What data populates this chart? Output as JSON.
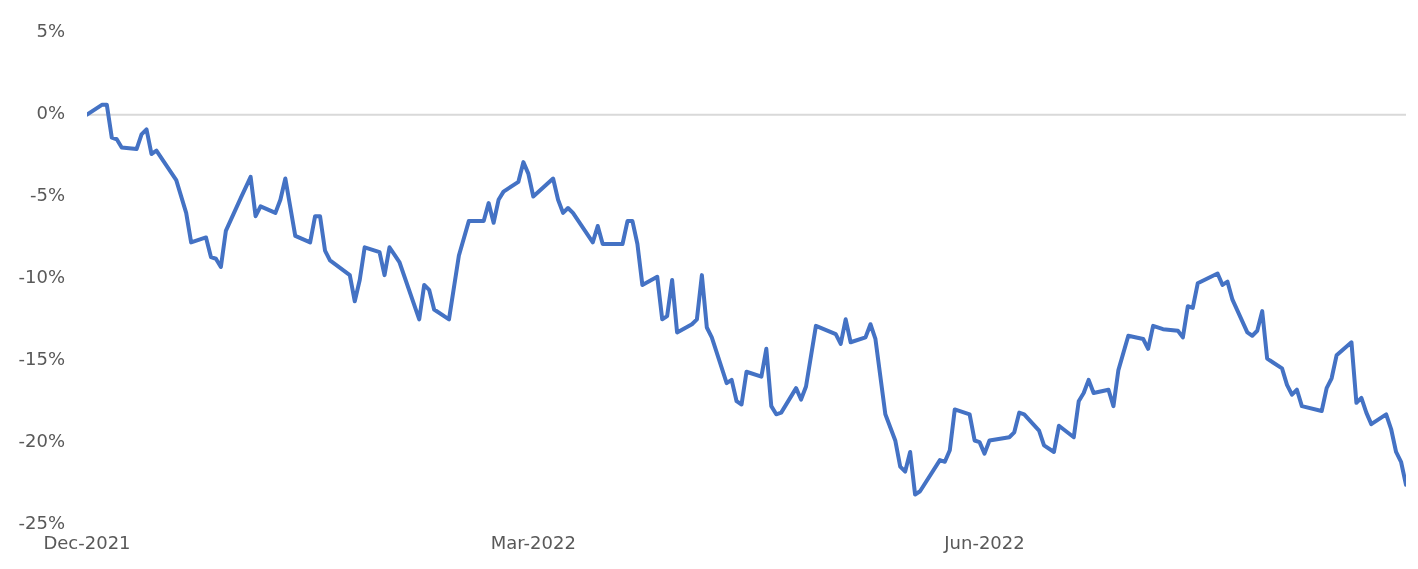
{
  "chart_data": {
    "type": "line",
    "x": [
      "2021-12-31",
      "2022-01-03",
      "2022-01-04",
      "2022-01-05",
      "2022-01-06",
      "2022-01-07",
      "2022-01-10",
      "2022-01-11",
      "2022-01-12",
      "2022-01-13",
      "2022-01-14",
      "2022-01-18",
      "2022-01-20",
      "2022-01-21",
      "2022-01-24",
      "2022-01-25",
      "2022-01-26",
      "2022-01-27",
      "2022-01-28",
      "2022-01-31",
      "2022-02-02",
      "2022-02-03",
      "2022-02-04",
      "2022-02-07",
      "2022-02-08",
      "2022-02-09",
      "2022-02-11",
      "2022-02-14",
      "2022-02-15",
      "2022-02-16",
      "2022-02-17",
      "2022-02-18",
      "2022-02-22",
      "2022-02-23",
      "2022-02-24",
      "2022-02-25",
      "2022-02-28",
      "2022-03-01",
      "2022-03-02",
      "2022-03-04",
      "2022-03-08",
      "2022-03-09",
      "2022-03-10",
      "2022-03-11",
      "2022-03-14",
      "2022-03-16",
      "2022-03-18",
      "2022-03-21",
      "2022-03-22",
      "2022-03-23",
      "2022-03-24",
      "2022-03-25",
      "2022-03-28",
      "2022-03-29",
      "2022-03-30",
      "2022-03-31",
      "2022-04-04",
      "2022-04-05",
      "2022-04-06",
      "2022-04-07",
      "2022-04-08",
      "2022-04-12",
      "2022-04-13",
      "2022-04-14",
      "2022-04-18",
      "2022-04-19",
      "2022-04-20",
      "2022-04-21",
      "2022-04-22",
      "2022-04-25",
      "2022-04-26",
      "2022-04-27",
      "2022-04-28",
      "2022-04-29",
      "2022-05-02",
      "2022-05-03",
      "2022-05-04",
      "2022-05-05",
      "2022-05-06",
      "2022-05-09",
      "2022-05-10",
      "2022-05-11",
      "2022-05-12",
      "2022-05-13",
      "2022-05-16",
      "2022-05-17",
      "2022-05-18",
      "2022-05-19",
      "2022-05-20",
      "2022-05-23",
      "2022-05-24",
      "2022-05-25",
      "2022-05-27",
      "2022-05-31",
      "2022-06-01",
      "2022-06-02",
      "2022-06-03",
      "2022-06-06",
      "2022-06-07",
      "2022-06-08",
      "2022-06-10",
      "2022-06-12",
      "2022-06-13",
      "2022-06-14",
      "2022-06-15",
      "2022-06-16",
      "2022-06-17",
      "2022-06-21",
      "2022-06-22",
      "2022-06-23",
      "2022-06-24",
      "2022-06-27",
      "2022-06-28",
      "2022-06-29",
      "2022-06-30",
      "2022-07-01",
      "2022-07-05",
      "2022-07-06",
      "2022-07-07",
      "2022-07-08",
      "2022-07-11",
      "2022-07-12",
      "2022-07-14",
      "2022-07-15",
      "2022-07-18",
      "2022-07-19",
      "2022-07-20",
      "2022-07-21",
      "2022-07-22",
      "2022-07-25",
      "2022-07-26",
      "2022-07-27",
      "2022-07-29",
      "2022-08-01",
      "2022-08-02",
      "2022-08-03",
      "2022-08-05",
      "2022-08-08",
      "2022-08-09",
      "2022-08-10",
      "2022-08-11",
      "2022-08-12",
      "2022-08-16",
      "2022-08-17",
      "2022-08-18",
      "2022-08-19",
      "2022-08-22",
      "2022-08-23",
      "2022-08-24",
      "2022-08-25",
      "2022-08-26",
      "2022-08-29",
      "2022-08-30",
      "2022-08-31",
      "2022-09-01",
      "2022-09-02",
      "2022-09-06",
      "2022-09-07",
      "2022-09-08",
      "2022-09-09",
      "2022-09-12",
      "2022-09-13",
      "2022-09-14",
      "2022-09-15",
      "2022-09-16",
      "2022-09-19",
      "2022-09-20",
      "2022-09-21",
      "2022-09-22",
      "2022-09-23"
    ],
    "series": [
      {
        "color": "#4472c4",
        "values": [
          0,
          0.6,
          0.6,
          -1.4,
          -1.5,
          -2.0,
          -2.1,
          -1.2,
          -0.9,
          -2.4,
          -2.2,
          -4.0,
          -6.0,
          -7.8,
          -7.5,
          -8.7,
          -8.8,
          -9.3,
          -7.1,
          -5.1,
          -3.8,
          -6.2,
          -5.6,
          -6.0,
          -5.2,
          -3.9,
          -7.4,
          -7.8,
          -6.2,
          -6.2,
          -8.3,
          -8.9,
          -9.8,
          -11.4,
          -10.1,
          -8.1,
          -8.4,
          -9.8,
          -8.1,
          -9.0,
          -12.5,
          -10.4,
          -10.7,
          -11.9,
          -12.5,
          -8.6,
          -6.5,
          -6.5,
          -5.4,
          -6.6,
          -5.2,
          -4.7,
          -4.1,
          -2.9,
          -3.6,
          -5.0,
          -3.9,
          -5.2,
          -6.0,
          -5.7,
          -6.0,
          -7.8,
          -6.8,
          -7.9,
          -7.9,
          -6.5,
          -6.5,
          -7.9,
          -10.4,
          -9.9,
          -12.5,
          -12.3,
          -10.1,
          -13.3,
          -12.8,
          -12.5,
          -9.8,
          -13.0,
          -13.6,
          -16.4,
          -16.2,
          -17.5,
          -17.7,
          -15.7,
          -16.0,
          -14.3,
          -17.8,
          -18.3,
          -18.2,
          -16.7,
          -17.4,
          -16.6,
          -12.9,
          -13.4,
          -14.0,
          -12.5,
          -13.9,
          -13.6,
          -12.8,
          -13.7,
          -18.3,
          -19.9,
          -21.5,
          -21.8,
          -20.6,
          -23.2,
          -23.0,
          -21.1,
          -21.2,
          -20.5,
          -18.0,
          -18.3,
          -19.9,
          -20.0,
          -20.7,
          -19.9,
          -19.7,
          -19.4,
          -18.2,
          -18.3,
          -19.3,
          -20.2,
          -20.6,
          -19.0,
          -19.7,
          -17.5,
          -17.0,
          -16.2,
          -17.0,
          -16.8,
          -17.8,
          -15.6,
          -13.5,
          -13.7,
          -14.3,
          -12.9,
          -13.1,
          -13.2,
          -13.6,
          -11.7,
          -11.8,
          -10.3,
          -9.7,
          -10.4,
          -10.2,
          -11.3,
          -13.3,
          -13.5,
          -13.2,
          -12.0,
          -14.9,
          -15.5,
          -16.5,
          -17.1,
          -16.8,
          -17.8,
          -18.1,
          -16.7,
          -16.1,
          -14.7,
          -13.9,
          -17.6,
          -17.3,
          -18.2,
          -18.9,
          -18.3,
          -19.2,
          -20.6,
          -21.2,
          -22.6
        ]
      }
    ],
    "xlim": [
      "2021-12-31",
      "2022-09-23"
    ],
    "xticks": [
      {
        "value": "2021-12-31",
        "label": "Dec-2021"
      },
      {
        "value": "2022-03-31",
        "label": "Mar-2022"
      },
      {
        "value": "2022-06-30",
        "label": "Jun-2022"
      }
    ],
    "ylim": [
      -25,
      5
    ],
    "yticks": [
      {
        "value": 5,
        "label": "5%"
      },
      {
        "value": 0,
        "label": "0%"
      },
      {
        "value": -5,
        "label": "-5%"
      },
      {
        "value": -10,
        "label": "-10%"
      },
      {
        "value": -15,
        "label": "-15%"
      },
      {
        "value": -20,
        "label": "-20%"
      },
      {
        "value": -25,
        "label": "-25%"
      }
    ],
    "ref_lines": [
      {
        "axis": "y",
        "value": 0,
        "color": "#d9d9d9"
      }
    ],
    "grid": false,
    "legend": false,
    "marker": "none",
    "line_style": "solid"
  }
}
